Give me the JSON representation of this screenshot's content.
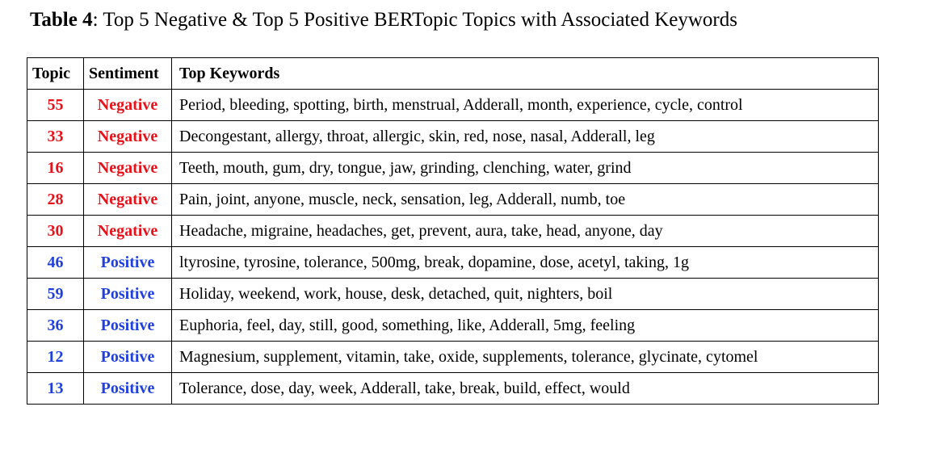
{
  "caption": {
    "label": "Table 4",
    "text": ": Top 5 Negative & Top 5 Positive BERTopic Topics with Associated Keywords"
  },
  "table": {
    "headers": {
      "topic": "Topic",
      "sentiment": "Sentiment",
      "keywords": "Top Keywords"
    },
    "colors": {
      "negative": "#e8111a",
      "positive": "#1f3fe0"
    },
    "rows": [
      {
        "topic": "55",
        "sentiment": "Negative",
        "keywords": "Period, bleeding, spotting, birth, menstrual, Adderall, month, experience, cycle, control"
      },
      {
        "topic": "33",
        "sentiment": "Negative",
        "keywords": "Decongestant, allergy, throat, allergic, skin, red, nose, nasal, Adderall, leg"
      },
      {
        "topic": "16",
        "sentiment": "Negative",
        "keywords": "Teeth, mouth, gum, dry, tongue, jaw, grinding, clenching, water, grind"
      },
      {
        "topic": "28",
        "sentiment": "Negative",
        "keywords": "Pain, joint, anyone, muscle, neck, sensation, leg, Adderall, numb, toe"
      },
      {
        "topic": "30",
        "sentiment": "Negative",
        "keywords": "Headache, migraine, headaches, get, prevent, aura, take, head, anyone, day"
      },
      {
        "topic": "46",
        "sentiment": "Positive",
        "keywords": "ltyrosine, tyrosine, tolerance, 500mg, break, dopamine, dose, acetyl, taking, 1g"
      },
      {
        "topic": "59",
        "sentiment": "Positive",
        "keywords": "Holiday, weekend, work, house, desk, detached, quit, nighters, boil"
      },
      {
        "topic": "36",
        "sentiment": "Positive",
        "keywords": "Euphoria, feel, day, still, good, something, like, Adderall, 5mg, feeling"
      },
      {
        "topic": "12",
        "sentiment": "Positive",
        "keywords": "Magnesium, supplement, vitamin, take, oxide, supplements, tolerance, glycinate, cytomel"
      },
      {
        "topic": "13",
        "sentiment": "Positive",
        "keywords": "Tolerance, dose, day, week, Adderall, take, break, build, effect, would"
      }
    ]
  }
}
